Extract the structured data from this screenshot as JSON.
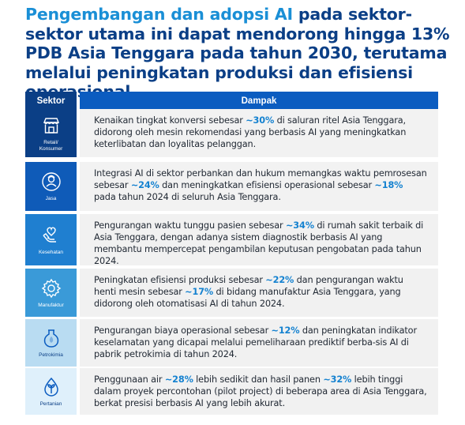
{
  "title": {
    "part1": "Pengembangan dan adopsi AI",
    "part2": " pada sektor-sektor utama ini dapat mendorong hingga 13% PDB Asia Tenggara pada tahun 2030, terutama melalui peningkatan produksi dan efisiensi operasional"
  },
  "table": {
    "header_sector": "Sektor",
    "header_impact": "Dampak",
    "rows": [
      {
        "sector": "Retail/\nKonsumer",
        "icon": "store-icon",
        "t1": "Kenaikan tingkat konversi sebesar ",
        "n1": "~30%",
        "t2": " di saluran ritel Asia Tenggara, didorong oleh mesin rekomendasi yang berbasis AI yang meningkatkan keterlibatan dan loyalitas pelanggan.",
        "n2": "",
        "t3": ""
      },
      {
        "sector": "Jasa",
        "icon": "service-person-icon",
        "t1": "Integrasi AI di  sektor perbankan dan hukum memangkas waktu pemrosesan sebesar ",
        "n1": "~24%",
        "t2": " dan meningkatkan efisiensi operasional sebesar ",
        "n2": "~18%",
        "t3": " pada tahun 2024 di seluruh Asia Tenggara."
      },
      {
        "sector": "Kesehatan",
        "icon": "healthcare-hand-icon",
        "t1": "Pengurangan waktu tunggu pasien sebesar ",
        "n1": "~34%",
        "t2": " di rumah sakit terbaik di Asia Tenggara, dengan adanya sistem diagnostik berbasis AI yang membantu mempercepat pengambilan keputusan pengobatan pada tahun 2024.",
        "n2": "",
        "t3": ""
      },
      {
        "sector": "Manufaktur",
        "icon": "gear-icon",
        "t1": "Peningkatan efisiensi produksi sebesar ",
        "n1": "~22%",
        "t2": " dan pengurangan waktu henti mesin sebesar ",
        "n2": "~17%",
        "t3": " di bidang manufaktur Asia Tenggara, yang didorong oleh otomatisasi AI di tahun 2024."
      },
      {
        "sector": "Petrokimia",
        "icon": "flask-icon",
        "t1": "Pengurangan biaya operasional sebesar ",
        "n1": "~12%",
        "t2": " dan peningkatan indikator keselamatan yang dicapai melalui pemeliharaan prediktif berba-sis AI di pabrik petrokimia di tahun 2024.",
        "n2": "",
        "t3": ""
      },
      {
        "sector": "Pertanian",
        "icon": "plant-drop-icon",
        "t1": "Penggunaan air ",
        "n1": "~28%",
        "t2": " lebih sedikit dan hasil panen ",
        "n2": "~32%",
        "t3": " lebih tinggi dalam proyek percontohan (pilot project) di beberapa area di Asia Tenggara, berkat presisi berbasis AI yang lebih akurat."
      }
    ]
  }
}
